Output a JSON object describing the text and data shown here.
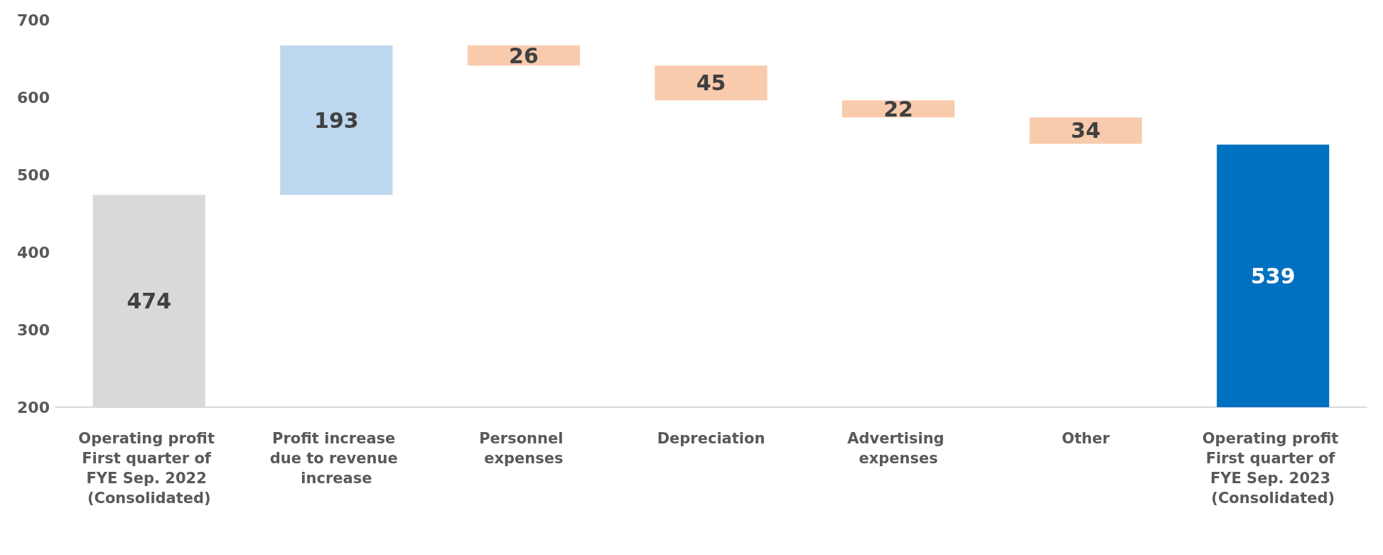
{
  "chart_data": {
    "type": "bar",
    "categories": [
      "Operating profit First quarter of FYE Sep. 2022 (Consolidated)",
      "Profit increase due to revenue increase",
      "Personnel expenses",
      "Depreciation",
      "Advertising expenses",
      "Other",
      "Operating profit First quarter of FYE Sep. 2023 (Consolidated)"
    ],
    "base": [
      200,
      474,
      641,
      596,
      574,
      540,
      200
    ],
    "values": [
      274,
      193,
      26,
      45,
      22,
      34,
      339
    ],
    "value_labels": [
      "474",
      "193",
      "26",
      "45",
      "22",
      "34",
      "539"
    ],
    "colors": [
      "#d9d9d9",
      "#bdd7ee",
      "#f8cbad",
      "#f8cbad",
      "#f8cbad",
      "#f8cbad",
      "#0070c0"
    ],
    "ylim": [
      200,
      700
    ],
    "yticks": [
      200,
      300,
      400,
      500,
      600,
      700
    ],
    "grid": false
  }
}
